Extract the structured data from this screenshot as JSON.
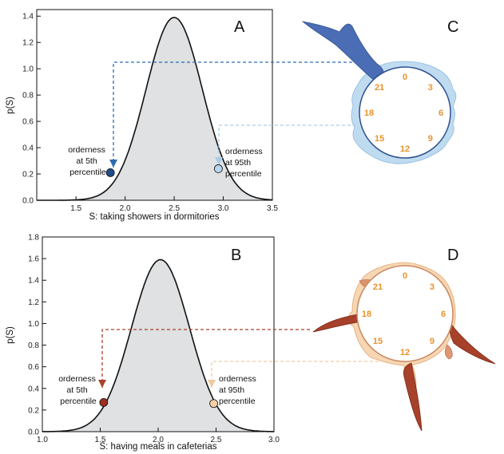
{
  "chart_data": [
    {
      "id": "A",
      "type": "area",
      "panel_label": "A",
      "xlabel": "S: taking showers in dormitories",
      "ylabel": "p(S)",
      "xlim": [
        1.1,
        3.5
      ],
      "ylim": [
        0.0,
        1.45
      ],
      "xticks": [
        "1.5",
        "2.0",
        "2.5",
        "3.0",
        "3.5"
      ],
      "xtick_values": [
        1.5,
        2.0,
        2.5,
        3.0,
        3.5
      ],
      "yticks": [
        "0.0",
        "0.2",
        "0.4",
        "0.6",
        "0.8",
        "1.0",
        "1.2",
        "1.4"
      ],
      "ytick_values": [
        0.0,
        0.2,
        0.4,
        0.6,
        0.8,
        1.0,
        1.2,
        1.4
      ],
      "distribution": {
        "shape": "normal",
        "mean": 2.5,
        "sd": 0.287,
        "peak": 1.39
      },
      "markers": [
        {
          "name": "5th percentile",
          "x": 1.85,
          "y": 0.21,
          "color": "#1f4e8c",
          "label_lines": [
            "orderness",
            "at 5th",
            "percentile"
          ]
        },
        {
          "name": "95th percentile",
          "x": 2.95,
          "y": 0.24,
          "color": "#b8d7ee",
          "label_lines": [
            "orderness",
            "at 95th",
            "percentile"
          ]
        }
      ]
    },
    {
      "id": "B",
      "type": "area",
      "panel_label": "B",
      "xlabel": "S: having meals in cafeterias",
      "ylabel": "p(S)",
      "xlim": [
        1.0,
        3.0
      ],
      "ylim": [
        0.0,
        1.8
      ],
      "xticks": [
        "1.0",
        "1.5",
        "2.0",
        "2.5",
        "3.0"
      ],
      "xtick_values": [
        1.0,
        1.5,
        2.0,
        2.5,
        3.0
      ],
      "yticks": [
        "0.0",
        "0.2",
        "0.4",
        "0.6",
        "0.8",
        "1.0",
        "1.2",
        "1.4",
        "1.6",
        "1.8"
      ],
      "ytick_values": [
        0.0,
        0.2,
        0.4,
        0.6,
        0.8,
        1.0,
        1.2,
        1.4,
        1.6,
        1.8
      ],
      "distribution": {
        "shape": "normal",
        "mean": 2.02,
        "sd": 0.25,
        "peak": 1.59
      },
      "markers": [
        {
          "name": "5th percentile",
          "x": 1.53,
          "y": 0.27,
          "color": "#9c2f1f",
          "label_lines": [
            "orderness",
            "at 5th",
            "percentile"
          ]
        },
        {
          "name": "95th percentile",
          "x": 2.48,
          "y": 0.26,
          "color": "#f5cfa6",
          "label_lines": [
            "orderness",
            "at 95th",
            "percentile"
          ]
        }
      ]
    },
    {
      "id": "C",
      "type": "polar",
      "panel_label": "C",
      "hour_labels": [
        "0",
        "3",
        "6",
        "9",
        "12",
        "15",
        "18",
        "21"
      ],
      "series": [
        {
          "name": "orderness at 5th percentile",
          "color": "#4a6db5",
          "description": "activity concentrated in a large spike toward hour 21-22"
        },
        {
          "name": "orderness at 95th percentile",
          "color": "#b8d7ee",
          "description": "activity spread evenly around the clock"
        }
      ]
    },
    {
      "id": "D",
      "type": "polar",
      "panel_label": "D",
      "hour_labels": [
        "0",
        "3",
        "6",
        "9",
        "12",
        "15",
        "18",
        "21"
      ],
      "series": [
        {
          "name": "orderness at 5th percentile",
          "color": "#a8412a",
          "description": "sharp spikes near hours 8, 12-13 and 17"
        },
        {
          "name": "orderness at 95th percentile",
          "color": "#f5cfa6",
          "description": "broader, smoother activity lobes"
        }
      ]
    }
  ]
}
